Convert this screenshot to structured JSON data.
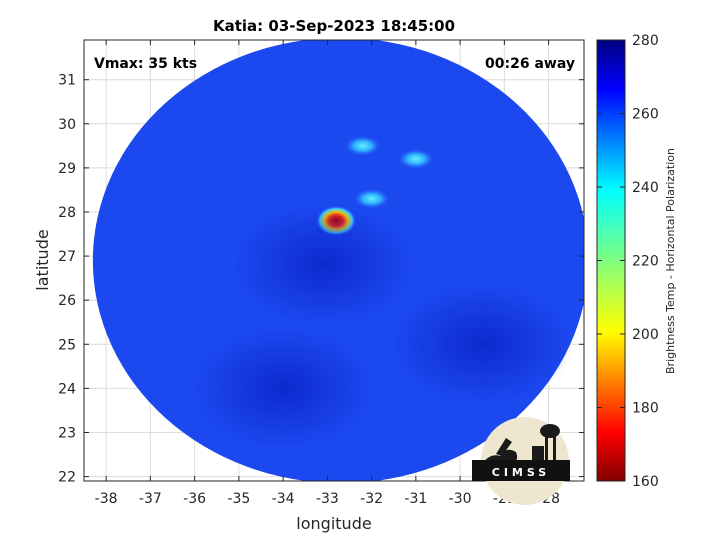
{
  "chart_data": {
    "type": "heatmap",
    "title": "Katia: 03-Sep-2023 18:45:00",
    "xlabel": "longitude",
    "ylabel": "latitude",
    "xlim": [
      -38.5,
      -27.2
    ],
    "ylim": [
      21.9,
      31.9
    ],
    "x_ticks": [
      -38,
      -37,
      -36,
      -35,
      -34,
      -33,
      -32,
      -31,
      -30,
      -29,
      -28
    ],
    "y_ticks": [
      22,
      23,
      24,
      25,
      26,
      27,
      28,
      29,
      30,
      31
    ],
    "grid": true,
    "annotations": {
      "vmax": "Vmax: 35 kts",
      "time_away": "00:26 away"
    },
    "colorbar": {
      "label": "Brightness Temp - Horizontal Polarization",
      "min": 160,
      "max": 280,
      "ticks": [
        160,
        180,
        200,
        220,
        240,
        260,
        280
      ]
    },
    "swath": {
      "center_lon": -32.7,
      "center_lat": 26.9,
      "radius_lon": 5.6,
      "radius_lat": 5.05,
      "background_value": 258
    },
    "features": [
      {
        "lon": -32.8,
        "lat": 27.8,
        "value": 172
      },
      {
        "lon": -32.0,
        "lat": 28.3,
        "value": 238
      },
      {
        "lon": -31.0,
        "lat": 29.2,
        "value": 240
      },
      {
        "lon": -32.2,
        "lat": 29.5,
        "value": 246
      },
      {
        "lon": -33.1,
        "lat": 26.8,
        "value": 270
      },
      {
        "lon": -34.0,
        "lat": 24.0,
        "value": 262
      },
      {
        "lon": -29.5,
        "lat": 25.0,
        "value": 268
      }
    ],
    "logo_text": "CIMSS"
  }
}
